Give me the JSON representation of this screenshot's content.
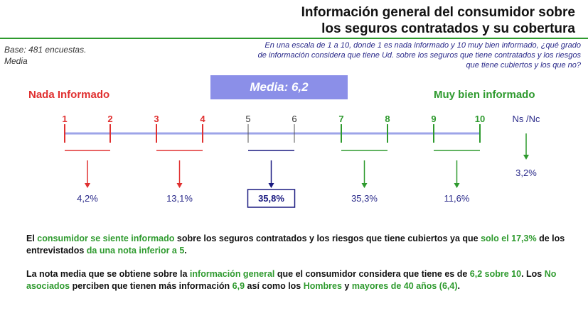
{
  "title_line1": "Información general del consumidor sobre",
  "title_line2": "los seguros contratados y su cobertura",
  "base_line1": "Base: 481 encuestas.",
  "base_line2": "Media",
  "question_line1": "En una escala de 1 a 10, donde 1 es nada informado y 10 muy bien informado, ¿qué grado",
  "question_line2": "de información considera que tiene Ud. sobre los seguros que tiene contratados y los riesgos",
  "question_line3": "que tiene cubiertos y los que no?",
  "media_label": "Media: 6,2",
  "scale_left_label": "Nada Informado",
  "scale_right_label": "Muy bien informado",
  "colors": {
    "red": "#e03030",
    "navy": "#1a1a80",
    "green": "#2e9a2e",
    "grey": "#555555",
    "axis": "#9da4e8"
  },
  "chart_data": {
    "type": "bar",
    "title": "",
    "ticks": [
      {
        "label": "1",
        "color": "red"
      },
      {
        "label": "2",
        "color": "red"
      },
      {
        "label": "3",
        "color": "red"
      },
      {
        "label": "4",
        "color": "red"
      },
      {
        "label": "5",
        "color": "grey"
      },
      {
        "label": "6",
        "color": "grey"
      },
      {
        "label": "7",
        "color": "green"
      },
      {
        "label": "8",
        "color": "green"
      },
      {
        "label": "9",
        "color": "green"
      },
      {
        "label": "10",
        "color": "green"
      }
    ],
    "nsnc_label": "Ns /Nc",
    "categories": [
      "1-2",
      "3-4",
      "5-6",
      "7-8",
      "9-10",
      "Ns /Nc"
    ],
    "values": [
      4.2,
      13.1,
      35.8,
      35.3,
      11.6,
      3.2
    ],
    "value_labels": [
      "4,2%",
      "13,1%",
      "35,8%",
      "35,3%",
      "11,6%",
      "3,2%"
    ],
    "group_colors": [
      "red",
      "red",
      "navy",
      "green",
      "green",
      "green"
    ],
    "highlighted": "5-6",
    "mean": 6.2
  },
  "summary1": {
    "p1": "El ",
    "p2": "consumidor se siente informado",
    "p3": " sobre los seguros contratados y los riesgos que tiene cubiertos ya que ",
    "p4": "solo el 17,3%",
    "p5": " de los entrevistados ",
    "p6": "da una nota inferior a 5",
    "p7": "."
  },
  "summary2": {
    "p1": "La nota media que se obtiene sobre la ",
    "p2": "información general",
    "p3": " que el consumidor considera que tiene es de ",
    "p4": "6,2 sobre 10",
    "p5": ". Los ",
    "p6": "No asociados",
    "p7": " perciben que tienen más información ",
    "p8": "6,9",
    "p9": " así como los ",
    "p10": "Hombres",
    "p11": "  y ",
    "p12": "mayores de 40 años (6,4)",
    "p13": "."
  }
}
